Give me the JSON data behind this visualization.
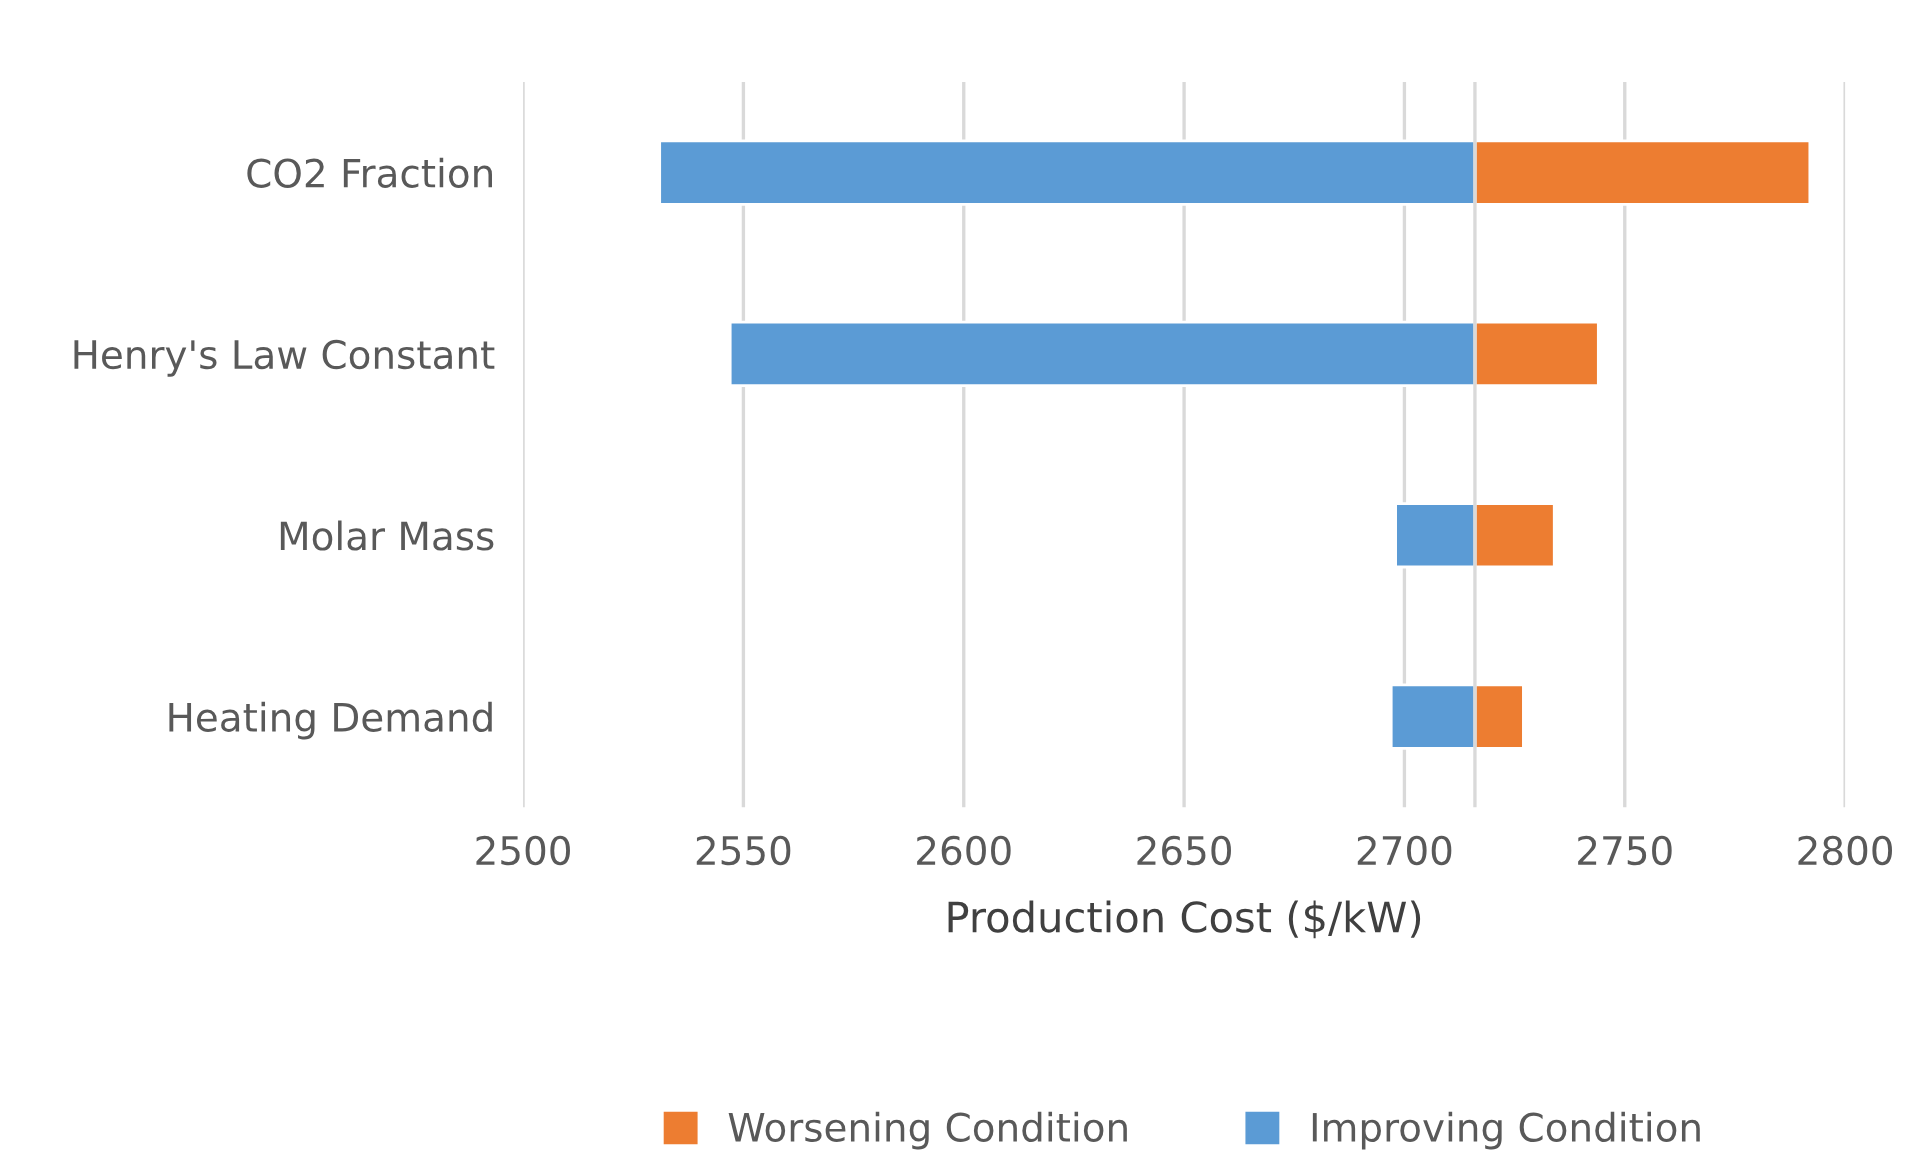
{
  "chart_data": {
    "type": "bar",
    "orientation": "horizontal",
    "xlabel": "Production Cost ($/kW)",
    "categories": [
      "CO2 Fraction",
      "Henry's Law Constant",
      "Molar Mass",
      "Heating Demand"
    ],
    "series": [
      {
        "name": "Worsening Condition",
        "color": "#ed7d31",
        "base": [
          2716,
          2716,
          2716,
          2716
        ],
        "values": [
          76,
          28,
          18,
          11
        ]
      },
      {
        "name": "Improving Condition",
        "color": "#5b9bd5",
        "base": [
          2531,
          2547,
          2698,
          2697
        ],
        "values": [
          185,
          169,
          18,
          19
        ]
      }
    ],
    "xlim": [
      2500,
      2800
    ],
    "xticks": [
      2500,
      2550,
      2600,
      2650,
      2700,
      2750,
      2800
    ],
    "ref_lines": [
      {
        "axis": "x",
        "value": 2716,
        "color": "#d9d9d9"
      }
    ],
    "grid": "x",
    "legend": "bottom"
  }
}
